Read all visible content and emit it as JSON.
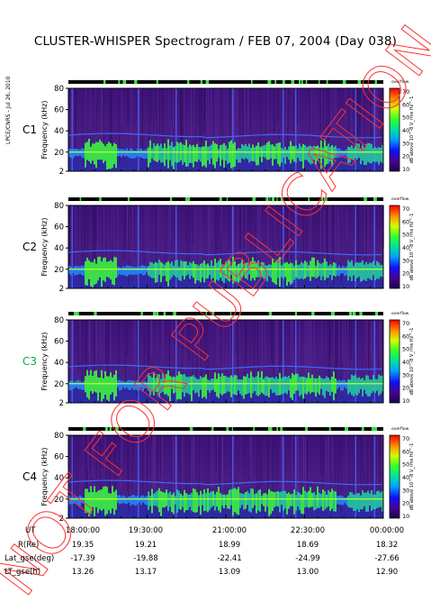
{
  "title": "CLUSTER-WHISPER Spectrogram / FEB 07, 2004 (Day 038)",
  "credit": "LPCE/CNRS - Jul 26, 2010",
  "watermark": "NOT FOR PUBLICATION",
  "chart_data": [
    {
      "type": "heatmap",
      "panel": "C1",
      "label_color": "#000000",
      "ylabel": "Frequency (kHz)",
      "yticks": [
        "80",
        "60",
        "40",
        "20",
        "2"
      ],
      "ylim": [
        2,
        80
      ],
      "xlim": [
        "18:00:00",
        "00:00:00"
      ],
      "colorbar_label": "dB above 10^-8 V_rms Hz^-1",
      "colorbar_ticks": [
        "70",
        "60",
        "50",
        "40",
        "30",
        "20",
        "10"
      ],
      "colorbar_top": "overflow"
    },
    {
      "type": "heatmap",
      "panel": "C2",
      "label_color": "#000000",
      "ylabel": "Frequency (kHz)",
      "yticks": [
        "80",
        "60",
        "40",
        "20",
        "2"
      ],
      "ylim": [
        2,
        80
      ],
      "xlim": [
        "18:00:00",
        "00:00:00"
      ],
      "colorbar_label": "dB above 10^-8 V_rms Hz^-1",
      "colorbar_ticks": [
        "70",
        "60",
        "50",
        "40",
        "30",
        "20",
        "10"
      ],
      "colorbar_top": "overflow"
    },
    {
      "type": "heatmap",
      "panel": "C3",
      "label_color": "#00b050",
      "ylabel": "Frequency (kHz)",
      "yticks": [
        "80",
        "60",
        "40",
        "20",
        "2"
      ],
      "ylim": [
        2,
        80
      ],
      "xlim": [
        "18:00:00",
        "00:00:00"
      ],
      "colorbar_label": "dB above 10^-8 V_rms Hz^-1",
      "colorbar_ticks": [
        "70",
        "60",
        "50",
        "40",
        "30",
        "20",
        "10"
      ],
      "colorbar_top": "overflow"
    },
    {
      "type": "heatmap",
      "panel": "C4",
      "label_color": "#000000",
      "ylabel": "Frequency (kHz)",
      "yticks": [
        "80",
        "60",
        "40",
        "20",
        "2"
      ],
      "ylim": [
        2,
        80
      ],
      "xlim": [
        "18:00:00",
        "00:00:00"
      ],
      "colorbar_label": "dB above 10^-8 V_rms Hz^-1",
      "colorbar_ticks": [
        "70",
        "60",
        "50",
        "40",
        "30",
        "20",
        "10"
      ],
      "colorbar_top": "overflow"
    }
  ],
  "ephemeris": {
    "times": [
      "18:00:00",
      "19:30:00",
      "21:00:00",
      "22:30:00",
      "00:00:00"
    ],
    "rows": [
      {
        "label": "UT",
        "values": [
          "18:00:00",
          "19:30:00",
          "21:00:00",
          "22:30:00",
          "00:00:00"
        ]
      },
      {
        "label": "R(Re)",
        "values": [
          "19.35",
          "19.21",
          "18.99",
          "18.69",
          "18.32"
        ]
      },
      {
        "label": "Lat_gse(deg)",
        "values": [
          "-17.39",
          "-19.88",
          "-22.41",
          "-24.99",
          "-27.66"
        ]
      },
      {
        "label": "LT_gse(h)",
        "values": [
          "13.26",
          "13.17",
          "13.09",
          "13.00",
          "12.90"
        ]
      }
    ]
  },
  "colors": {
    "background": "#4a1d84",
    "band": "#2de04a",
    "line": "#3a6cff"
  }
}
